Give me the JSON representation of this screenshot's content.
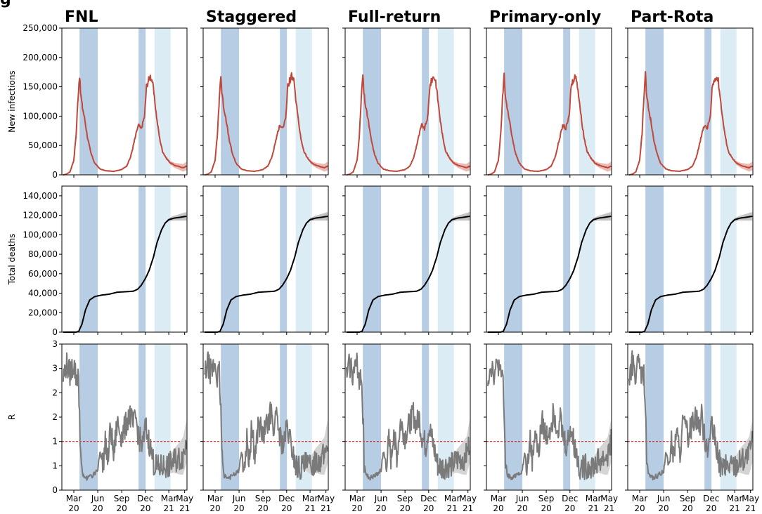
{
  "panel_marker": "g",
  "scenarios": [
    "FNL",
    "Staggered",
    "Full-return",
    "Primary-only",
    "Part-Rota"
  ],
  "colors": {
    "infections": "#c0483a",
    "infections_band": "#e8b4ad",
    "deaths": "#000000",
    "deaths_band": "#bdbdbd",
    "r_line": "#7a7a7a",
    "r_band": "#d0d0d0",
    "r_threshold": "#e41a1c",
    "lockdown_dark": "#b7cde3",
    "lockdown_light": "#dcecf5"
  },
  "x_axis": {
    "ticks": [
      {
        "month": "Mar",
        "year": "20",
        "x": "2020-03-01"
      },
      {
        "month": "Jun",
        "year": "20",
        "x": "2020-06-01"
      },
      {
        "month": "Sep",
        "year": "20",
        "x": "2020-09-01"
      },
      {
        "month": "Dec",
        "year": "20",
        "x": "2020-12-01"
      },
      {
        "month": "Mar",
        "year": "21",
        "x": "2021-03-01"
      },
      {
        "month": "May",
        "year": "21",
        "x": "2021-05-01"
      }
    ],
    "range": [
      "2020-01-15",
      "2021-05-10"
    ]
  },
  "shaded_periods": [
    {
      "start": "2020-03-23",
      "end": "2020-06-01",
      "shade": "dark"
    },
    {
      "start": "2020-11-05",
      "end": "2020-12-02",
      "shade": "dark"
    },
    {
      "start": "2021-01-05",
      "end": "2021-03-08",
      "shade": "light"
    }
  ],
  "chart_data": [
    {
      "type": "line",
      "ylabel": "New infections",
      "ylim": [
        0,
        250000
      ],
      "yticks": [
        "0",
        "50,000",
        "100,000",
        "150,000",
        "200,000",
        "250,000"
      ],
      "ytick_values": [
        0,
        50000,
        100000,
        150000,
        200000,
        250000
      ],
      "series": [
        {
          "x": [
            "2020-01-20",
            "2020-02-01",
            "2020-02-15",
            "2020-03-01",
            "2020-03-10",
            "2020-03-17",
            "2020-03-21",
            "2020-03-23",
            "2020-03-27",
            "2020-04-03",
            "2020-04-12",
            "2020-04-22",
            "2020-05-05",
            "2020-05-20",
            "2020-06-10",
            "2020-07-01",
            "2020-08-01",
            "2020-09-01",
            "2020-09-20",
            "2020-10-05",
            "2020-10-20",
            "2020-11-01",
            "2020-11-05",
            "2020-11-15",
            "2020-11-28",
            "2020-12-05",
            "2020-12-12",
            "2020-12-20",
            "2020-12-28",
            "2021-01-05",
            "2021-01-15",
            "2021-01-25",
            "2021-02-05",
            "2021-02-20",
            "2021-03-08",
            "2021-03-25",
            "2021-04-10",
            "2021-04-25",
            "2021-05-08"
          ],
          "y": [
            0,
            1000,
            5000,
            25000,
            70000,
            130000,
            158000,
            170000,
            140000,
            115000,
            95000,
            65000,
            38000,
            20000,
            10000,
            7000,
            6000,
            9000,
            15000,
            30000,
            58000,
            80000,
            85000,
            78000,
            100000,
            150000,
            160000,
            168000,
            160000,
            130000,
            92000,
            62000,
            40000,
            28000,
            20000,
            16000,
            14000,
            12000,
            15000
          ]
        }
      ]
    },
    {
      "type": "line",
      "ylabel": "Total deaths",
      "ylim": [
        0,
        150000
      ],
      "yticks": [
        "0",
        "20,000",
        "40,000",
        "60,000",
        "80,000",
        "100,000",
        "120,000",
        "140,000"
      ],
      "ytick_values": [
        0,
        20000,
        40000,
        60000,
        80000,
        100000,
        120000,
        140000
      ],
      "series": [
        {
          "x": [
            "2020-01-20",
            "2020-03-10",
            "2020-03-20",
            "2020-04-01",
            "2020-04-15",
            "2020-05-01",
            "2020-05-20",
            "2020-06-15",
            "2020-07-15",
            "2020-08-15",
            "2020-09-15",
            "2020-10-15",
            "2020-11-01",
            "2020-11-15",
            "2020-12-01",
            "2020-12-15",
            "2021-01-01",
            "2021-01-15",
            "2021-02-01",
            "2021-02-15",
            "2021-03-01",
            "2021-03-20",
            "2021-04-15",
            "2021-05-08"
          ],
          "y": [
            0,
            0,
            1000,
            8000,
            23000,
            33000,
            36500,
            38000,
            39000,
            41000,
            41500,
            42000,
            44000,
            48000,
            55000,
            63000,
            77000,
            92000,
            105000,
            112000,
            115500,
            117000,
            118000,
            119000
          ]
        }
      ]
    },
    {
      "type": "line",
      "ylabel": "R",
      "ylim": [
        0,
        3
      ],
      "yticks": [
        "0",
        "1",
        "1",
        "2",
        "2",
        "3",
        "3"
      ],
      "ytick_values": [
        0,
        0.5,
        1,
        1.5,
        2,
        2.5,
        3
      ],
      "threshold": 1,
      "series": [
        {
          "x": [
            "2020-01-20",
            "2020-02-01",
            "2020-02-15",
            "2020-03-01",
            "2020-03-10",
            "2020-03-17",
            "2020-03-23",
            "2020-03-28",
            "2020-04-05",
            "2020-04-20",
            "2020-05-10",
            "2020-06-01",
            "2020-06-10",
            "2020-06-20",
            "2020-07-01",
            "2020-07-10",
            "2020-07-20",
            "2020-08-01",
            "2020-08-15",
            "2020-09-01",
            "2020-09-15",
            "2020-10-01",
            "2020-10-15",
            "2020-10-25",
            "2020-11-05",
            "2020-11-20",
            "2020-12-02",
            "2020-12-15",
            "2021-01-05",
            "2021-01-20",
            "2021-02-10",
            "2021-03-01",
            "2021-03-20",
            "2021-04-10",
            "2021-04-25",
            "2021-05-08"
          ],
          "y": [
            2.3,
            2.6,
            2.4,
            2.6,
            2.3,
            2.4,
            1.6,
            0.6,
            0.3,
            0.25,
            0.3,
            0.4,
            0.8,
            0.5,
            1.0,
            0.6,
            1.3,
            0.7,
            1.4,
            1.1,
            1.3,
            1.6,
            1.3,
            1.5,
            1.1,
            0.9,
            1.3,
            1.0,
            0.5,
            0.45,
            0.5,
            0.5,
            0.6,
            0.65,
            0.7,
            1.0
          ]
        }
      ]
    }
  ]
}
